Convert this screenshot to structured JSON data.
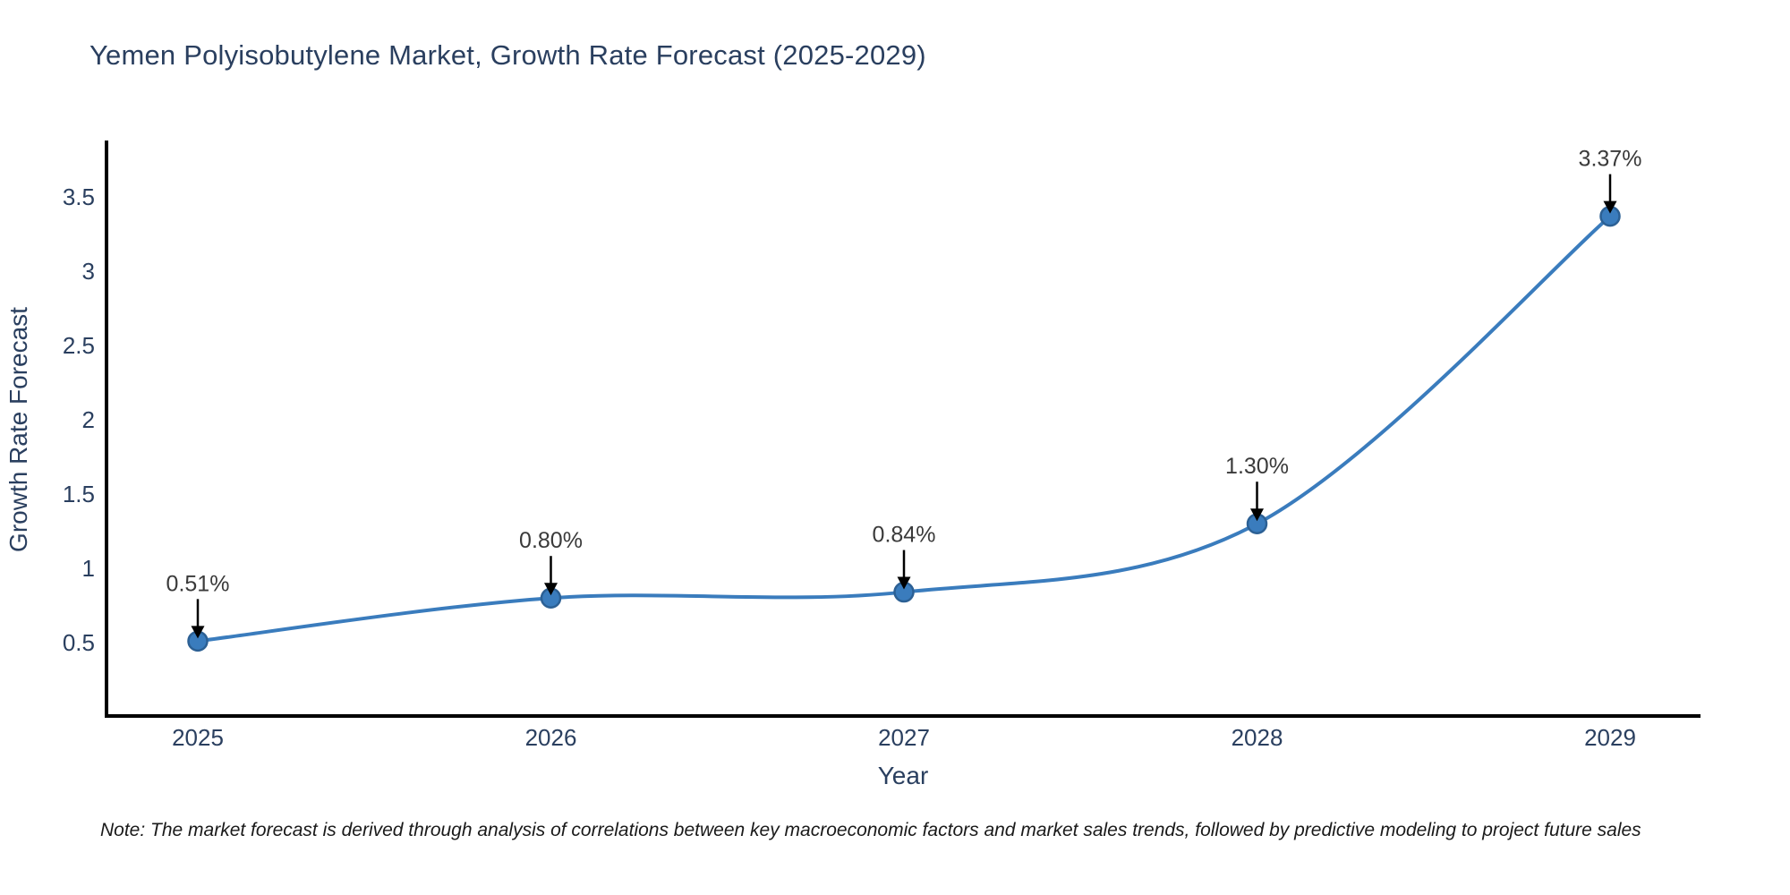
{
  "note": "Note: The market forecast is derived through analysis of correlations between key macroeconomic factors and market sales trends, followed by predictive modeling to project future sales",
  "chart_data": {
    "type": "line",
    "title": "Yemen Polyisobutylene Market, Growth Rate Forecast (2025-2029)",
    "xlabel": "Year",
    "ylabel": "Growth Rate Forecast",
    "x": [
      2025,
      2026,
      2027,
      2028,
      2029
    ],
    "values": [
      0.51,
      0.8,
      0.84,
      1.3,
      3.37
    ],
    "point_labels": [
      "0.51%",
      "0.80%",
      "0.84%",
      "1.30%",
      "3.37%"
    ],
    "xticks": [
      "2025",
      "2026",
      "2027",
      "2028",
      "2029"
    ],
    "yticks": [
      "0.5",
      "1",
      "1.5",
      "2",
      "2.5",
      "3",
      "3.5"
    ],
    "xlim": [
      2024.74,
      2029.26
    ],
    "ylim": [
      0,
      3.86
    ],
    "grid": false,
    "line_shape": "spline",
    "legend": "none",
    "colors": {
      "line": "#3a7cbd",
      "marker_fill": "#3a7cbd",
      "marker_edge": "#2c6094",
      "axis": "#000000",
      "title_text": "#2a3f5f",
      "tick_text": "#2a3f5f",
      "annotation_text": "#3a3a3a",
      "background": "#ffffff"
    }
  }
}
